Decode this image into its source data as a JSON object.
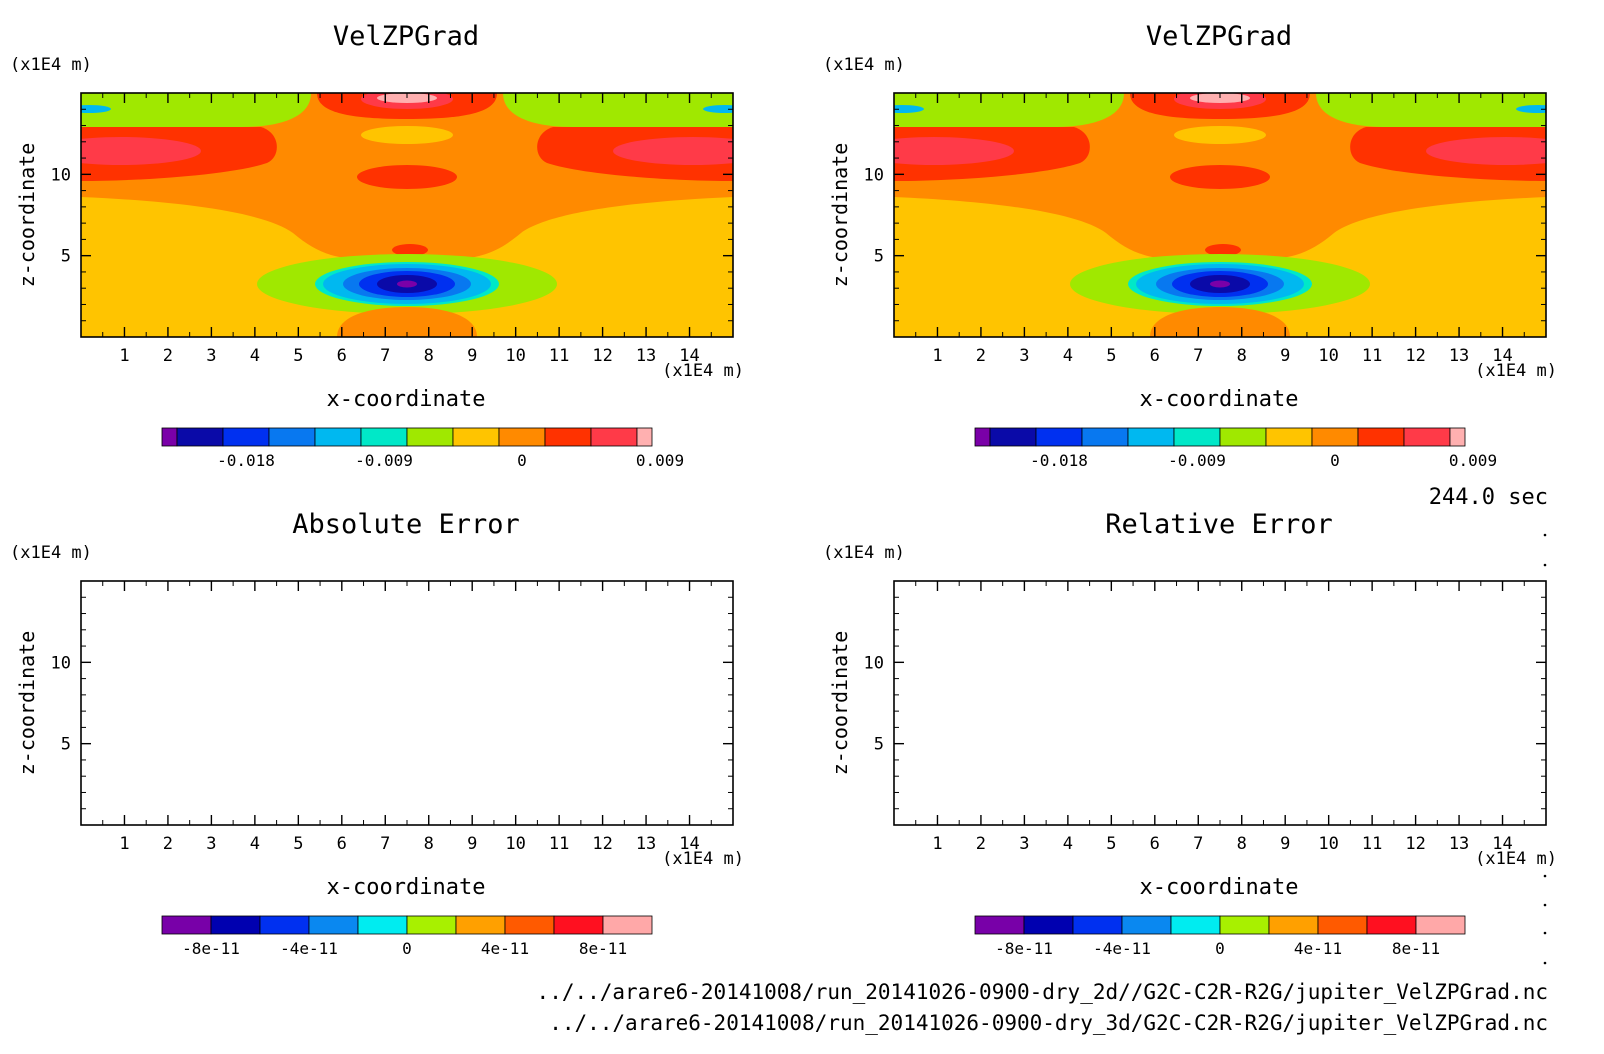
{
  "time_label": "244.0 sec",
  "file_paths": [
    "../../arare6-20141008/run_20141026-0900-dry_2d//G2C-C2R-R2G/jupiter_VelZPGrad.nc",
    "../../arare6-20141008/run_20141026-0900-dry_3d/G2C-C2R-R2G/jupiter_VelZPGrad.nc"
  ],
  "chart_data": [
    {
      "type": "heatmap",
      "title": "VelZPGrad",
      "xlabel": "x-coordinate",
      "ylabel": "z-coordinate",
      "x_unit": "(x1E4 m)",
      "y_unit": "(x1E4 m)",
      "xlim": [
        0,
        15
      ],
      "ylim": [
        0,
        15
      ],
      "x_ticks": [
        "1",
        "2",
        "3",
        "4",
        "5",
        "6",
        "7",
        "8",
        "9",
        "10",
        "11",
        "12",
        "13",
        "14"
      ],
      "y_ticks": [
        "5",
        "10"
      ],
      "field": "filled",
      "colorbar": {
        "colors": [
          "#7a00a8",
          "#0a0aa8",
          "#0030f0",
          "#0878f0",
          "#00b8f0",
          "#00e8c8",
          "#a0e800",
          "#ffc400",
          "#ff8a00",
          "#ff3200",
          "#ff3a48",
          "#ffb0b0"
        ],
        "tick_labels": [
          "-0.018",
          "-0.009",
          "0",
          "0.009"
        ]
      }
    },
    {
      "type": "heatmap",
      "title": "VelZPGrad",
      "xlabel": "x-coordinate",
      "ylabel": "z-coordinate",
      "x_unit": "(x1E4 m)",
      "y_unit": "(x1E4 m)",
      "xlim": [
        0,
        15
      ],
      "ylim": [
        0,
        15
      ],
      "x_ticks": [
        "1",
        "2",
        "3",
        "4",
        "5",
        "6",
        "7",
        "8",
        "9",
        "10",
        "11",
        "12",
        "13",
        "14"
      ],
      "y_ticks": [
        "5",
        "10"
      ],
      "field": "filled",
      "colorbar": {
        "colors": [
          "#7a00a8",
          "#0a0aa8",
          "#0030f0",
          "#0878f0",
          "#00b8f0",
          "#00e8c8",
          "#a0e800",
          "#ffc400",
          "#ff8a00",
          "#ff3200",
          "#ff3a48",
          "#ffb0b0"
        ],
        "tick_labels": [
          "-0.018",
          "-0.009",
          "0",
          "0.009"
        ]
      }
    },
    {
      "type": "heatmap",
      "title": "Absolute Error",
      "xlabel": "x-coordinate",
      "ylabel": "z-coordinate",
      "x_unit": "(x1E4 m)",
      "y_unit": "(x1E4 m)",
      "xlim": [
        0,
        15
      ],
      "ylim": [
        0,
        15
      ],
      "x_ticks": [
        "1",
        "2",
        "3",
        "4",
        "5",
        "6",
        "7",
        "8",
        "9",
        "10",
        "11",
        "12",
        "13",
        "14"
      ],
      "y_ticks": [
        "5",
        "10"
      ],
      "field": "empty",
      "colorbar": {
        "colors": [
          "#7800a8",
          "#0000b0",
          "#0030f0",
          "#0a88f0",
          "#00ecf0",
          "#a8f000",
          "#ffa000",
          "#ff5a00",
          "#ff1020",
          "#ffa8a8"
        ],
        "tick_labels": [
          "-8e-11",
          "-4e-11",
          "0",
          "4e-11",
          "8e-11"
        ]
      }
    },
    {
      "type": "heatmap",
      "title": "Relative Error",
      "xlabel": "x-coordinate",
      "ylabel": "z-coordinate",
      "x_unit": "(x1E4 m)",
      "y_unit": "(x1E4 m)",
      "xlim": [
        0,
        15
      ],
      "ylim": [
        0,
        15
      ],
      "x_ticks": [
        "1",
        "2",
        "3",
        "4",
        "5",
        "6",
        "7",
        "8",
        "9",
        "10",
        "11",
        "12",
        "13",
        "14"
      ],
      "y_ticks": [
        "5",
        "10"
      ],
      "field": "empty",
      "colorbar": {
        "colors": [
          "#7800a8",
          "#0000b0",
          "#0030f0",
          "#0a88f0",
          "#00ecf0",
          "#a8f000",
          "#ffa000",
          "#ff5a00",
          "#ff1020",
          "#ffa8a8"
        ],
        "tick_labels": [
          "-8e-11",
          "-4e-11",
          "0",
          "4e-11",
          "8e-11"
        ]
      }
    }
  ]
}
